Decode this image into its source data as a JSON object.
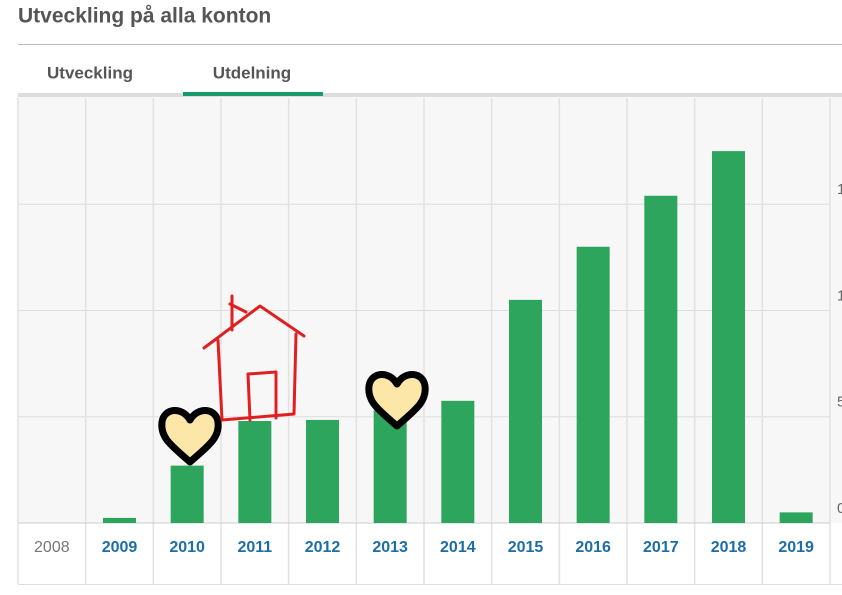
{
  "header": {
    "title": "Utveckling på alla konton"
  },
  "tabs": [
    {
      "label": "Utveckling",
      "active": false
    },
    {
      "label": "Utdelning",
      "active": true
    }
  ],
  "chart_data": {
    "type": "bar",
    "categories": [
      "2008",
      "2009",
      "2010",
      "2011",
      "2012",
      "2013",
      "2014",
      "2015",
      "2016",
      "2017",
      "2018",
      "2019"
    ],
    "values": [
      0,
      0.24,
      2.7,
      4.8,
      4.85,
      5.3,
      5.75,
      10.5,
      13.0,
      15.4,
      17.5,
      0.5
    ],
    "color": "#2ea55d",
    "ylim": [
      0,
      20
    ],
    "yticks": [
      0,
      5,
      {
        "value": 10,
        "label": "1"
      },
      {
        "value": 15,
        "label": "1"
      }
    ],
    "grid": true
  }
}
